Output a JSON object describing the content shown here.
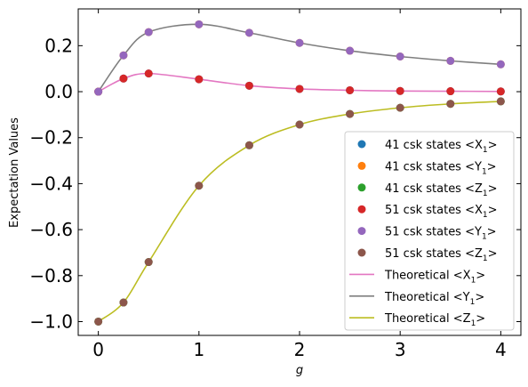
{
  "chart_data": {
    "type": "scatter",
    "xlabel": "g",
    "ylabel": "Expectation Values",
    "xlim": [
      -0.2,
      4.2
    ],
    "ylim": [
      -1.06,
      0.36
    ],
    "x_ticks": [
      0,
      1,
      2,
      3,
      4
    ],
    "y_ticks": [
      -1.0,
      -0.8,
      -0.6,
      -0.4,
      -0.2,
      0.0,
      0.2
    ],
    "x_tick_labels": [
      "0",
      "1",
      "2",
      "3",
      "4"
    ],
    "y_tick_labels": [
      "−1.0",
      "−0.8",
      "−0.6",
      "−0.4",
      "−0.2",
      "0.0",
      "0.2"
    ],
    "grid": false,
    "legend_position": "lower-right",
    "x": [
      0,
      0.25,
      0.5,
      1,
      1.5,
      2,
      2.5,
      3,
      3.5,
      4
    ],
    "series": [
      {
        "name": "41 csk states <X₁>",
        "kind": "scatter",
        "color": "#1f77b4",
        "values": [
          0.0,
          0.057,
          0.079,
          0.054,
          0.026,
          0.012,
          0.006,
          0.003,
          0.002,
          0.001
        ]
      },
      {
        "name": "41 csk states <Y₁>",
        "kind": "scatter",
        "color": "#ff7f0e",
        "values": [
          0.0,
          0.158,
          0.259,
          0.293,
          0.256,
          0.212,
          0.178,
          0.153,
          0.134,
          0.119
        ]
      },
      {
        "name": "41 csk states <Z₁>",
        "kind": "scatter",
        "color": "#2ca02c",
        "values": [
          -1.0,
          -0.917,
          -0.741,
          -0.409,
          -0.233,
          -0.143,
          -0.097,
          -0.07,
          -0.053,
          -0.042
        ]
      },
      {
        "name": "51 csk states <X₁>",
        "kind": "scatter",
        "color": "#d62728",
        "values": [
          0.0,
          0.057,
          0.079,
          0.054,
          0.026,
          0.012,
          0.006,
          0.003,
          0.002,
          0.001
        ]
      },
      {
        "name": "51 csk states <Y₁>",
        "kind": "scatter",
        "color": "#9467bd",
        "values": [
          0.0,
          0.158,
          0.259,
          0.293,
          0.256,
          0.212,
          0.178,
          0.153,
          0.134,
          0.119
        ]
      },
      {
        "name": "51 csk states <Z₁>",
        "kind": "scatter",
        "color": "#8c564b",
        "values": [
          -1.0,
          -0.917,
          -0.741,
          -0.409,
          -0.233,
          -0.143,
          -0.097,
          -0.07,
          -0.053,
          -0.042
        ]
      },
      {
        "name": "Theoretical <X₁>",
        "kind": "line",
        "color": "#e377c2",
        "values": [
          0.0,
          0.057,
          0.079,
          0.054,
          0.026,
          0.012,
          0.006,
          0.003,
          0.002,
          0.001
        ]
      },
      {
        "name": "Theoretical <Y₁>",
        "kind": "line",
        "color": "#7f7f7f",
        "values": [
          0.0,
          0.158,
          0.259,
          0.293,
          0.256,
          0.212,
          0.178,
          0.153,
          0.134,
          0.119
        ]
      },
      {
        "name": "Theoretical <Z₁>",
        "kind": "line",
        "color": "#bcbd22",
        "values": [
          -1.0,
          -0.917,
          -0.741,
          -0.409,
          -0.233,
          -0.143,
          -0.097,
          -0.07,
          -0.053,
          -0.042
        ]
      }
    ],
    "legend": [
      {
        "prefix": "41 csk states ",
        "expr": "<X",
        "sub": "1",
        "close": ">",
        "color": "#1f77b4",
        "kind": "marker"
      },
      {
        "prefix": "41 csk states ",
        "expr": "<Y",
        "sub": "1",
        "close": ">",
        "color": "#ff7f0e",
        "kind": "marker"
      },
      {
        "prefix": "41 csk states ",
        "expr": "<Z",
        "sub": "1",
        "close": ">",
        "color": "#2ca02c",
        "kind": "marker"
      },
      {
        "prefix": "51 csk states ",
        "expr": "<X",
        "sub": "1",
        "close": ">",
        "color": "#d62728",
        "kind": "marker"
      },
      {
        "prefix": "51 csk states ",
        "expr": "<Y",
        "sub": "1",
        "close": ">",
        "color": "#9467bd",
        "kind": "marker"
      },
      {
        "prefix": "51 csk states ",
        "expr": "<Z",
        "sub": "1",
        "close": ">",
        "color": "#8c564b",
        "kind": "marker"
      },
      {
        "prefix": "Theoretical ",
        "expr": "<X",
        "sub": "1",
        "close": ">",
        "color": "#e377c2",
        "kind": "line"
      },
      {
        "prefix": "Theoretical ",
        "expr": "<Y",
        "sub": "1",
        "close": ">",
        "color": "#7f7f7f",
        "kind": "line"
      },
      {
        "prefix": "Theoretical ",
        "expr": "<Z",
        "sub": "1",
        "close": ">",
        "color": "#bcbd22",
        "kind": "line"
      }
    ]
  }
}
